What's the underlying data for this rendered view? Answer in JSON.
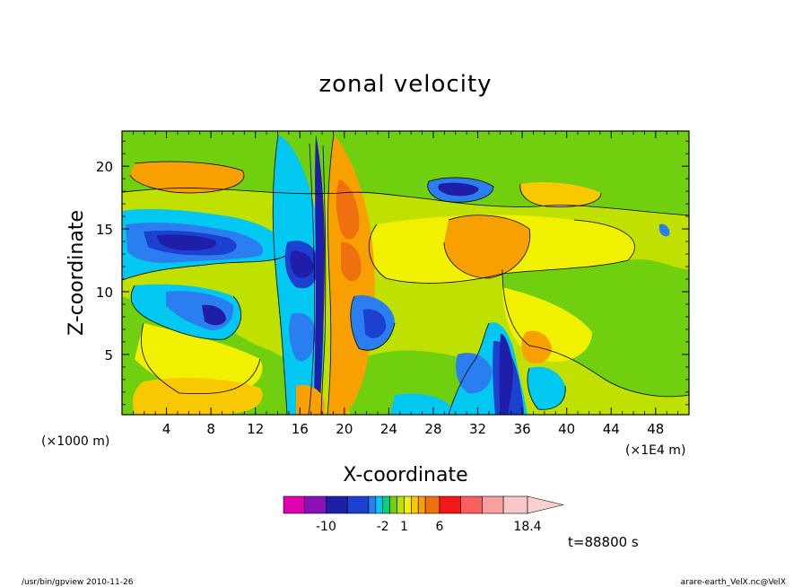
{
  "title": "zonal velocity",
  "chart_data": {
    "type": "heatmap",
    "title": "zonal velocity",
    "xlabel": "X-coordinate",
    "ylabel": "Z-coordinate",
    "x_unit_left": "(×1000 m)",
    "x_unit_right": "(×1E4 m)",
    "xlim": [
      0,
      51
    ],
    "ylim": [
      0.2,
      22.8
    ],
    "x_ticks": [
      "4",
      "8",
      "12",
      "16",
      "20",
      "24",
      "28",
      "32",
      "36",
      "40",
      "44",
      "48"
    ],
    "x_tick_values": [
      4,
      8,
      12,
      16,
      20,
      24,
      28,
      32,
      36,
      40,
      44,
      48
    ],
    "y_ticks": [
      "5",
      "10",
      "15",
      "20"
    ],
    "y_tick_values": [
      5,
      10,
      15,
      20
    ],
    "colorbar": {
      "levels": [
        -16,
        -13,
        -10,
        -7,
        -4,
        -3,
        -2,
        -1,
        0,
        1,
        2,
        3,
        4,
        6,
        9,
        12,
        15,
        18.4
      ],
      "colors": [
        "#e000b0",
        "#8c10b8",
        "#1e1ea8",
        "#1c40d0",
        "#2a7ef0",
        "#00c8f0",
        "#00d080",
        "#70d010",
        "#c0e000",
        "#f0f000",
        "#f8c800",
        "#f8a000",
        "#f07010",
        "#f01818",
        "#f86060",
        "#f8a0a0",
        "#f8c8c8"
      ],
      "extend_color": "#f8d0d0",
      "labels": [
        "-10",
        "-2",
        "1",
        "6",
        "18.4"
      ],
      "label_values": [
        -10,
        -2,
        1,
        6,
        18.4
      ]
    }
  },
  "time_label": "t=88800 s",
  "footer_left": "/usr/bin/gpview  2010-11-26",
  "footer_right": "arare-earth_VelX.nc@VelX"
}
